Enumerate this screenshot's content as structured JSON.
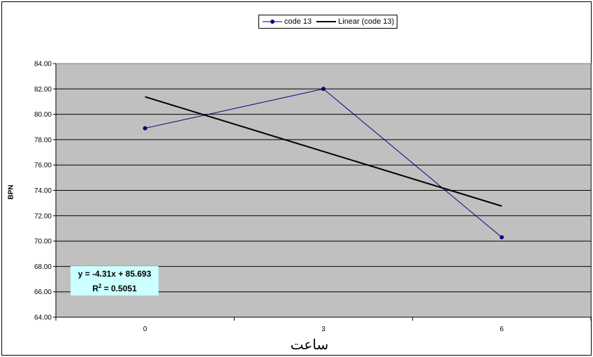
{
  "chart_data": {
    "type": "line",
    "title": "",
    "xlabel": "ساعت",
    "ylabel": "BPN",
    "categories": [
      "0",
      "3",
      "6"
    ],
    "x": [
      0,
      3,
      6
    ],
    "ylim": [
      64,
      84
    ],
    "ytick_labels": [
      "64.00",
      "66.00",
      "68.00",
      "70.00",
      "72.00",
      "74.00",
      "76.00",
      "78.00",
      "80.00",
      "82.00",
      "84.00"
    ],
    "grid": true,
    "legend": "top-center",
    "series": [
      {
        "name": "code 13",
        "values": [
          78.9,
          82.0,
          70.3
        ],
        "color": "#000080",
        "marker": "circle"
      },
      {
        "name": "Linear (code 13)",
        "values": [
          81.38,
          77.07,
          72.76
        ],
        "color": "#000000",
        "type": "trendline"
      }
    ],
    "annotation": {
      "equation": "y = -4.31x + 85.693",
      "r2_prefix": "R",
      "r2_sup": "2",
      "r2_value": " = 0.5051"
    },
    "colors": {
      "plot_area": "#c0c0c0",
      "equation_box": "#ccffff"
    }
  }
}
